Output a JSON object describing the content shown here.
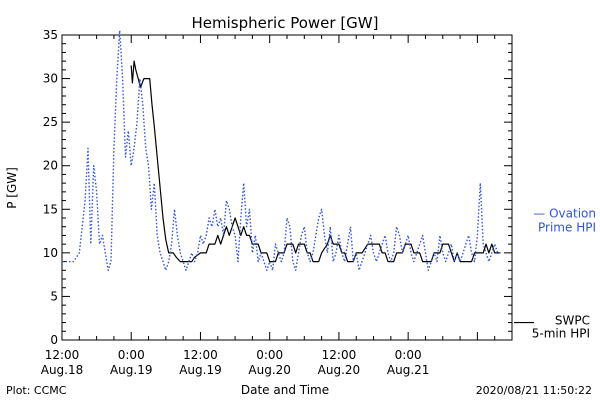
{
  "chart_data": {
    "type": "line",
    "title": "Hemispheric Power [GW]",
    "xlabel": "Date and Time",
    "ylabel": "P [GW]",
    "ylim": [
      0,
      35
    ],
    "xlim": [
      0,
      78
    ],
    "x_unit": "hours since 2020-08-18 12:00",
    "y_ticks": [
      0,
      5,
      10,
      15,
      20,
      25,
      30,
      35
    ],
    "x_ticks": [
      {
        "x": 0,
        "time": "12:00",
        "date": "Aug.18"
      },
      {
        "x": 12,
        "time": "0:00",
        "date": "Aug.19"
      },
      {
        "x": 24,
        "time": "12:00",
        "date": "Aug.19"
      },
      {
        "x": 36,
        "time": "0:00",
        "date": "Aug.20"
      },
      {
        "x": 48,
        "time": "12:00",
        "date": "Aug.20"
      },
      {
        "x": 60,
        "time": "0:00",
        "date": "Aug.21"
      }
    ],
    "grid": false,
    "legend_position": "right",
    "series": [
      {
        "name": "SWPC 5-min HPI",
        "legend_lines": [
          "SWPC",
          "5-min HPI"
        ],
        "color": "#000000",
        "style": "solid",
        "points": [
          [
            12.0,
            31.5
          ],
          [
            12.2,
            29.5
          ],
          [
            12.5,
            32.0
          ],
          [
            12.8,
            31.0
          ],
          [
            13.2,
            30.0
          ],
          [
            13.6,
            29.0
          ],
          [
            14.2,
            30.0
          ],
          [
            15.2,
            30.0
          ],
          [
            15.6,
            27.0
          ],
          [
            16.0,
            24.5
          ],
          [
            16.5,
            21.0
          ],
          [
            17.0,
            17.5
          ],
          [
            17.5,
            14.0
          ],
          [
            18.0,
            11.5
          ],
          [
            18.5,
            10.0
          ],
          [
            19.3,
            10.0
          ],
          [
            19.8,
            9.5
          ],
          [
            20.5,
            9.0
          ],
          [
            22.5,
            9.0
          ],
          [
            23.0,
            9.5
          ],
          [
            24.0,
            10.0
          ],
          [
            25.0,
            10.0
          ],
          [
            25.5,
            11.0
          ],
          [
            26.5,
            11.0
          ],
          [
            27.0,
            12.0
          ],
          [
            27.5,
            11.0
          ],
          [
            28.0,
            12.0
          ],
          [
            28.5,
            13.0
          ],
          [
            29.0,
            12.0
          ],
          [
            29.5,
            13.0
          ],
          [
            30.0,
            14.0
          ],
          [
            30.5,
            13.0
          ],
          [
            31.0,
            12.0
          ],
          [
            31.5,
            13.0
          ],
          [
            32.0,
            12.0
          ],
          [
            32.5,
            12.0
          ],
          [
            33.0,
            11.0
          ],
          [
            34.0,
            11.0
          ],
          [
            34.5,
            10.0
          ],
          [
            35.5,
            10.0
          ],
          [
            36.0,
            9.0
          ],
          [
            37.0,
            9.0
          ],
          [
            37.5,
            10.0
          ],
          [
            38.5,
            10.0
          ],
          [
            39.0,
            11.0
          ],
          [
            40.0,
            11.0
          ],
          [
            40.5,
            10.0
          ],
          [
            41.0,
            11.0
          ],
          [
            42.0,
            11.0
          ],
          [
            42.5,
            10.0
          ],
          [
            43.0,
            10.0
          ],
          [
            43.5,
            9.0
          ],
          [
            44.5,
            9.0
          ],
          [
            45.0,
            10.0
          ],
          [
            46.0,
            11.0
          ],
          [
            46.5,
            12.0
          ],
          [
            47.0,
            11.0
          ],
          [
            48.0,
            11.0
          ],
          [
            48.5,
            10.0
          ],
          [
            49.0,
            10.0
          ],
          [
            49.5,
            9.0
          ],
          [
            50.5,
            9.0
          ],
          [
            51.0,
            10.0
          ],
          [
            52.0,
            10.0
          ],
          [
            53.0,
            11.0
          ],
          [
            55.0,
            11.0
          ],
          [
            55.5,
            10.0
          ],
          [
            56.0,
            10.0
          ],
          [
            56.5,
            9.0
          ],
          [
            57.5,
            9.0
          ],
          [
            58.0,
            10.0
          ],
          [
            59.0,
            10.0
          ],
          [
            59.5,
            11.0
          ],
          [
            60.5,
            11.0
          ],
          [
            61.0,
            10.0
          ],
          [
            62.0,
            10.0
          ],
          [
            62.5,
            9.0
          ],
          [
            64.0,
            9.0
          ],
          [
            64.5,
            10.0
          ],
          [
            65.5,
            10.0
          ],
          [
            66.0,
            11.0
          ],
          [
            67.0,
            11.0
          ],
          [
            67.5,
            10.0
          ],
          [
            68.0,
            9.0
          ],
          [
            68.5,
            10.0
          ],
          [
            69.0,
            9.0
          ],
          [
            71.0,
            9.0
          ],
          [
            71.5,
            10.0
          ],
          [
            73.0,
            10.0
          ],
          [
            73.5,
            11.0
          ],
          [
            74.0,
            10.0
          ],
          [
            74.5,
            11.0
          ],
          [
            75.0,
            10.0
          ],
          [
            76.0,
            10.0
          ]
        ]
      },
      {
        "name": "Ovation Prime HPI",
        "legend_lines": [
          "— Ovation",
          "Prime HPI"
        ],
        "color": "#3355cc",
        "style": "dotted",
        "points": [
          [
            0.0,
            9.0
          ],
          [
            1.0,
            9.0
          ],
          [
            2.0,
            9.0
          ],
          [
            3.0,
            10.0
          ],
          [
            3.5,
            13.0
          ],
          [
            4.0,
            16.0
          ],
          [
            4.5,
            22.0
          ],
          [
            5.0,
            11.0
          ],
          [
            5.5,
            20.0
          ],
          [
            6.0,
            17.0
          ],
          [
            6.5,
            11.0
          ],
          [
            7.0,
            12.0
          ],
          [
            7.5,
            10.0
          ],
          [
            8.0,
            8.0
          ],
          [
            8.5,
            9.0
          ],
          [
            9.0,
            22.0
          ],
          [
            9.5,
            30.0
          ],
          [
            10.0,
            35.5
          ],
          [
            10.5,
            30.0
          ],
          [
            11.0,
            21.0
          ],
          [
            11.5,
            24.0
          ],
          [
            12.0,
            20.0
          ],
          [
            12.5,
            22.0
          ],
          [
            13.0,
            25.0
          ],
          [
            13.5,
            30.0
          ],
          [
            14.0,
            27.0
          ],
          [
            14.5,
            22.0
          ],
          [
            15.0,
            20.0
          ],
          [
            15.5,
            15.0
          ],
          [
            16.0,
            18.0
          ],
          [
            16.5,
            12.0
          ],
          [
            17.0,
            10.0
          ],
          [
            17.5,
            9.0
          ],
          [
            18.0,
            8.0
          ],
          [
            18.5,
            9.0
          ],
          [
            19.0,
            11.0
          ],
          [
            19.5,
            15.0
          ],
          [
            20.0,
            12.0
          ],
          [
            20.5,
            10.0
          ],
          [
            21.0,
            9.0
          ],
          [
            21.5,
            8.0
          ],
          [
            22.0,
            9.0
          ],
          [
            22.5,
            10.0
          ],
          [
            23.0,
            9.0
          ],
          [
            23.5,
            10.0
          ],
          [
            24.0,
            12.0
          ],
          [
            24.5,
            11.0
          ],
          [
            25.0,
            12.0
          ],
          [
            25.5,
            14.0
          ],
          [
            26.0,
            13.0
          ],
          [
            26.5,
            15.0
          ],
          [
            27.0,
            13.0
          ],
          [
            27.5,
            14.0
          ],
          [
            28.0,
            12.0
          ],
          [
            28.5,
            16.0
          ],
          [
            29.0,
            15.0
          ],
          [
            29.5,
            13.0
          ],
          [
            30.0,
            12.0
          ],
          [
            30.5,
            9.0
          ],
          [
            31.0,
            14.0
          ],
          [
            31.5,
            18.0
          ],
          [
            32.0,
            13.0
          ],
          [
            32.5,
            15.0
          ],
          [
            33.0,
            10.0
          ],
          [
            33.5,
            12.0
          ],
          [
            34.0,
            9.0
          ],
          [
            34.5,
            10.0
          ],
          [
            35.0,
            9.0
          ],
          [
            35.5,
            8.0
          ],
          [
            36.0,
            9.0
          ],
          [
            36.5,
            8.0
          ],
          [
            37.0,
            11.0
          ],
          [
            37.5,
            10.0
          ],
          [
            38.0,
            9.0
          ],
          [
            38.5,
            10.0
          ],
          [
            39.0,
            14.0
          ],
          [
            39.5,
            13.0
          ],
          [
            40.0,
            9.0
          ],
          [
            40.5,
            8.0
          ],
          [
            41.0,
            10.0
          ],
          [
            41.5,
            12.0
          ],
          [
            42.0,
            13.0
          ],
          [
            42.5,
            10.0
          ],
          [
            43.0,
            9.0
          ],
          [
            43.5,
            10.0
          ],
          [
            44.0,
            12.0
          ],
          [
            44.5,
            14.0
          ],
          [
            45.0,
            15.0
          ],
          [
            45.5,
            12.0
          ],
          [
            46.0,
            10.0
          ],
          [
            46.5,
            13.0
          ],
          [
            47.0,
            9.0
          ],
          [
            47.5,
            10.0
          ],
          [
            48.0,
            12.0
          ],
          [
            48.5,
            10.0
          ],
          [
            49.0,
            9.0
          ],
          [
            49.5,
            11.0
          ],
          [
            50.0,
            13.0
          ],
          [
            50.5,
            9.0
          ],
          [
            51.0,
            10.0
          ],
          [
            51.5,
            8.0
          ],
          [
            52.0,
            9.0
          ],
          [
            52.5,
            10.0
          ],
          [
            53.0,
            11.0
          ],
          [
            53.5,
            12.0
          ],
          [
            54.0,
            10.0
          ],
          [
            54.5,
            9.0
          ],
          [
            55.0,
            10.0
          ],
          [
            55.5,
            11.0
          ],
          [
            56.0,
            12.0
          ],
          [
            56.5,
            10.0
          ],
          [
            57.0,
            9.0
          ],
          [
            57.5,
            10.0
          ],
          [
            58.0,
            13.0
          ],
          [
            58.5,
            12.0
          ],
          [
            59.0,
            10.0
          ],
          [
            59.5,
            11.0
          ],
          [
            60.0,
            12.0
          ],
          [
            60.5,
            10.0
          ],
          [
            61.0,
            9.0
          ],
          [
            61.5,
            10.0
          ],
          [
            62.0,
            11.0
          ],
          [
            62.5,
            12.0
          ],
          [
            63.0,
            10.0
          ],
          [
            63.5,
            8.0
          ],
          [
            64.0,
            9.0
          ],
          [
            64.5,
            10.0
          ],
          [
            65.0,
            9.0
          ],
          [
            65.5,
            12.0
          ],
          [
            66.0,
            10.0
          ],
          [
            66.5,
            9.0
          ],
          [
            67.0,
            10.0
          ],
          [
            67.5,
            11.0
          ],
          [
            68.0,
            9.0
          ],
          [
            68.5,
            10.0
          ],
          [
            69.0,
            9.0
          ],
          [
            69.5,
            10.0
          ],
          [
            70.0,
            11.0
          ],
          [
            70.5,
            12.0
          ],
          [
            71.0,
            10.0
          ],
          [
            71.5,
            9.0
          ],
          [
            72.0,
            12.0
          ],
          [
            72.5,
            18.0
          ],
          [
            73.0,
            11.0
          ],
          [
            73.5,
            10.0
          ],
          [
            74.0,
            9.0
          ],
          [
            74.5,
            10.0
          ],
          [
            75.0,
            11.0
          ],
          [
            75.5,
            10.0
          ],
          [
            76.0,
            10.0
          ]
        ]
      }
    ]
  },
  "footer": {
    "left": "Plot: CCMC",
    "right": "2020/08/21 11:50:22"
  }
}
